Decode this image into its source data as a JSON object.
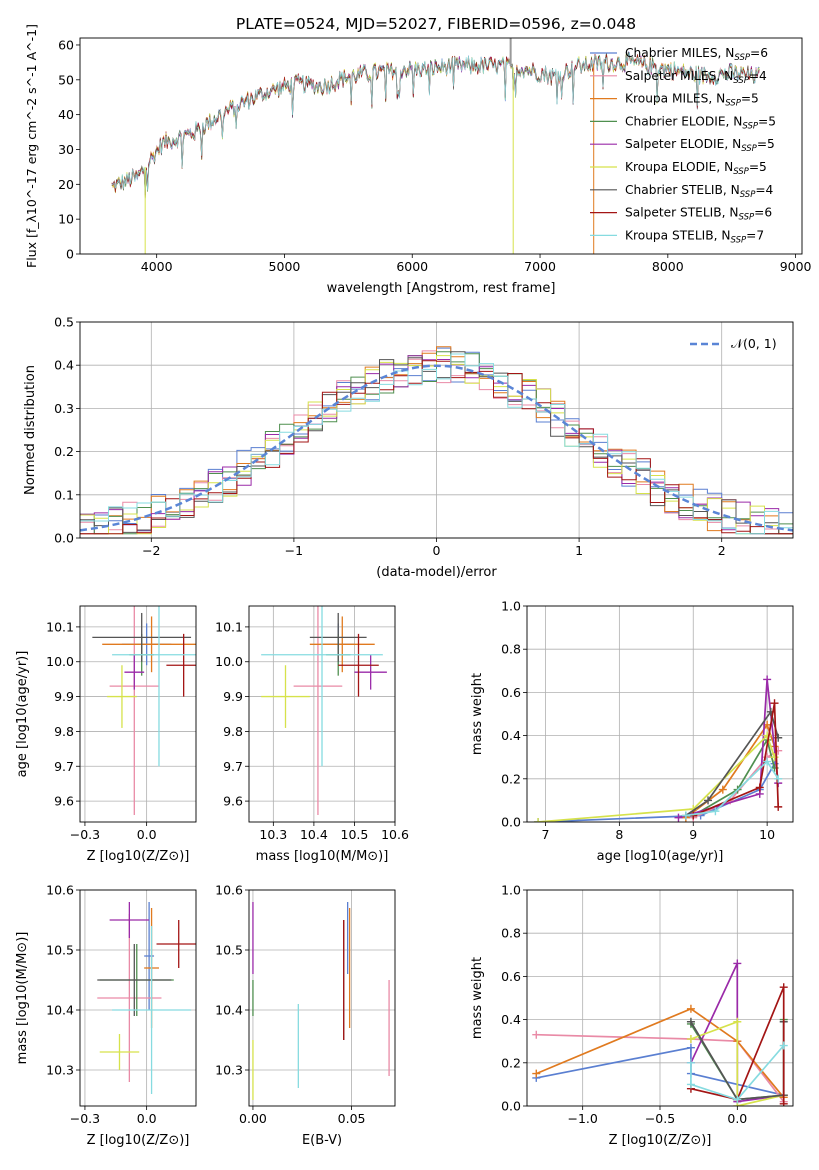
{
  "title": "PLATE=0524, MJD=52027, FIBERID=0596, z=0.048",
  "colors": {
    "Chabrier MILES": "#5a7fd1",
    "Salpeter MILES": "#e98aa6",
    "Kroupa MILES": "#e07a1f",
    "Chabrier ELODIE": "#4f8f4f",
    "Salpeter ELODIE": "#9a2aa8",
    "Kroupa ELODIE": "#d6e24b",
    "Chabrier STELIB": "#555555",
    "Salpeter STELIB": "#a31515",
    "Kroupa STELIB": "#86dbe0"
  },
  "chart_data": [
    {
      "type": "line",
      "panel": "spectrum",
      "xlabel": "wavelength [Angstrom, rest frame]",
      "ylabel": "Flux [f_λ10^-17 erg cm^-2 s^-1 A^-1]",
      "xlim": [
        3400,
        9050
      ],
      "ylim": [
        0,
        62
      ],
      "xticks": [
        4000,
        5000,
        6000,
        7000,
        8000,
        9000
      ],
      "yticks": [
        0,
        10,
        20,
        30,
        40,
        50,
        60
      ],
      "legend_position": "top-right",
      "legend": [
        {
          "label": "Chabrier MILES, N",
          "sub": "SSP",
          "tail": "=6"
        },
        {
          "label": "Salpeter MILES, N",
          "sub": "SSP",
          "tail": "=4"
        },
        {
          "label": "Kroupa MILES, N",
          "sub": "SSP",
          "tail": "=5"
        },
        {
          "label": "Chabrier ELODIE, N",
          "sub": "SSP",
          "tail": "=5"
        },
        {
          "label": "Salpeter ELODIE, N",
          "sub": "SSP",
          "tail": "=5"
        },
        {
          "label": "Kroupa ELODIE, N",
          "sub": "SSP",
          "tail": "=5"
        },
        {
          "label": "Chabrier STELIB, N",
          "sub": "SSP",
          "tail": "=4"
        },
        {
          "label": "Salpeter STELIB, N",
          "sub": "SSP",
          "tail": "=6"
        },
        {
          "label": "Kroupa STELIB, N",
          "sub": "SSP",
          "tail": "=7"
        }
      ],
      "continuum": [
        [
          3650,
          19
        ],
        [
          3750,
          21
        ],
        [
          3850,
          22
        ],
        [
          3950,
          27
        ],
        [
          4050,
          32
        ],
        [
          4150,
          33
        ],
        [
          4300,
          35
        ],
        [
          4500,
          40
        ],
        [
          4700,
          44
        ],
        [
          4900,
          47
        ],
        [
          5100,
          49
        ],
        [
          5300,
          48
        ],
        [
          5500,
          51
        ],
        [
          5700,
          52
        ],
        [
          5900,
          53
        ],
        [
          6100,
          53
        ],
        [
          6300,
          54
        ],
        [
          6500,
          54
        ],
        [
          6700,
          54
        ],
        [
          6900,
          53
        ],
        [
          7100,
          51
        ],
        [
          7300,
          54
        ],
        [
          7500,
          55
        ],
        [
          7700,
          55
        ],
        [
          8000,
          53
        ],
        [
          8300,
          51
        ],
        [
          8500,
          52
        ],
        [
          8700,
          51
        ]
      ]
    },
    {
      "type": "step",
      "panel": "residuals",
      "xlabel": "(data-model)/error",
      "ylabel": "Normed distribution",
      "xlim": [
        -2.5,
        2.5
      ],
      "ylim": [
        0,
        0.5
      ],
      "xticks": [
        -2,
        -1,
        0,
        1,
        2
      ],
      "yticks": [
        0.0,
        0.1,
        0.2,
        0.3,
        0.4,
        0.5
      ],
      "legend": "𝒩(0, 1)",
      "legend_position": "top-right",
      "gaussian": {
        "mean": 0,
        "sigma": 1
      }
    },
    {
      "type": "scatter",
      "panel": "age-vs-Z",
      "xlabel": "Z [log10(Z/Z⊙)]",
      "ylabel": "age  [log10(age/yr)]",
      "xlim": [
        -0.27,
        0.2
      ],
      "ylim": [
        9.54,
        10.16
      ],
      "xticks": [
        -0.25,
        0.0,
        0.25
      ],
      "yticks": [
        9.6,
        9.7,
        9.8,
        9.9,
        10.0,
        10.1
      ],
      "points": [
        {
          "name": "Chabrier MILES",
          "x": 0.0,
          "xerr": 0.1,
          "y": 10.05,
          "yerr": 0.06
        },
        {
          "name": "Salpeter MILES",
          "x": -0.05,
          "xerr": 0.1,
          "y": 9.93,
          "yerr": 0.37
        },
        {
          "name": "Kroupa MILES",
          "x": 0.02,
          "xerr": 0.2,
          "y": 10.05,
          "yerr": 0.08
        },
        {
          "name": "Chabrier ELODIE",
          "x": -0.02,
          "xerr": 0.05,
          "y": 10.02,
          "yerr": 0.06
        },
        {
          "name": "Salpeter ELODIE",
          "x": -0.05,
          "xerr": 0.04,
          "y": 9.97,
          "yerr": 0.05
        },
        {
          "name": "Kroupa ELODIE",
          "x": -0.1,
          "xerr": 0.06,
          "y": 9.9,
          "yerr": 0.09
        },
        {
          "name": "Chabrier STELIB",
          "x": -0.02,
          "xerr": 0.2,
          "y": 10.07,
          "yerr": 0.07
        },
        {
          "name": "Salpeter STELIB",
          "x": 0.15,
          "xerr": 0.07,
          "y": 9.99,
          "yerr": 0.09
        },
        {
          "name": "Kroupa STELIB",
          "x": 0.05,
          "xerr": 0.19,
          "y": 10.02,
          "yerr": 0.32
        }
      ]
    },
    {
      "type": "scatter",
      "panel": "age-vs-mass",
      "xlabel": "mass [log10(M/M⊙)]",
      "ylabel": "",
      "xlim": [
        10.24,
        10.6
      ],
      "ylim": [
        9.54,
        10.16
      ],
      "xticks": [
        10.3,
        10.4,
        10.5,
        10.6
      ],
      "yticks": [
        9.6,
        9.7,
        9.8,
        9.9,
        10.0,
        10.1
      ],
      "points": [
        {
          "name": "Chabrier MILES",
          "x": 10.46,
          "xerr": 0.04,
          "y": 10.05,
          "yerr": 0.06
        },
        {
          "name": "Salpeter MILES",
          "x": 10.41,
          "xerr": 0.06,
          "y": 9.93,
          "yerr": 0.37
        },
        {
          "name": "Kroupa MILES",
          "x": 10.47,
          "xerr": 0.08,
          "y": 10.05,
          "yerr": 0.08
        },
        {
          "name": "Chabrier ELODIE",
          "x": 10.46,
          "xerr": 0.03,
          "y": 10.02,
          "yerr": 0.06
        },
        {
          "name": "Salpeter ELODIE",
          "x": 10.54,
          "xerr": 0.04,
          "y": 9.97,
          "yerr": 0.05
        },
        {
          "name": "Kroupa ELODIE",
          "x": 10.33,
          "xerr": 0.06,
          "y": 9.9,
          "yerr": 0.09
        },
        {
          "name": "Chabrier STELIB",
          "x": 10.46,
          "xerr": 0.07,
          "y": 10.07,
          "yerr": 0.07
        },
        {
          "name": "Salpeter STELIB",
          "x": 10.51,
          "xerr": 0.05,
          "y": 9.99,
          "yerr": 0.09
        },
        {
          "name": "Kroupa STELIB",
          "x": 10.42,
          "xerr": 0.15,
          "y": 10.02,
          "yerr": 0.32
        }
      ]
    },
    {
      "type": "line",
      "panel": "massweight-vs-age",
      "xlabel": "age  [log10(age/yr)]",
      "ylabel": "mass weight",
      "xlim": [
        6.75,
        10.35
      ],
      "ylim": [
        0,
        1.0
      ],
      "xticks": [
        7,
        8,
        9,
        10
      ],
      "yticks": [
        0.0,
        0.2,
        0.4,
        0.6,
        0.8,
        1.0
      ],
      "series": [
        {
          "name": "Chabrier MILES",
          "x": [
            6.9,
            9.1,
            9.9,
            10.1
          ],
          "y": [
            0.0,
            0.03,
            0.15,
            0.27
          ]
        },
        {
          "name": "Salpeter MILES",
          "x": [
            9.0,
            9.5,
            10.0,
            10.15
          ],
          "y": [
            0.02,
            0.1,
            0.3,
            0.33
          ]
        },
        {
          "name": "Kroupa MILES",
          "x": [
            8.9,
            9.4,
            10.0,
            10.1
          ],
          "y": [
            0.02,
            0.15,
            0.45,
            0.35
          ]
        },
        {
          "name": "Chabrier ELODIE",
          "x": [
            9.0,
            9.6,
            10.0,
            10.1
          ],
          "y": [
            0.03,
            0.15,
            0.38,
            0.25
          ]
        },
        {
          "name": "Salpeter ELODIE",
          "x": [
            8.8,
            9.9,
            10.0,
            10.15
          ],
          "y": [
            0.02,
            0.13,
            0.66,
            0.18
          ]
        },
        {
          "name": "Kroupa ELODIE",
          "x": [
            6.9,
            9.0,
            10.0,
            10.1
          ],
          "y": [
            0.0,
            0.06,
            0.4,
            0.3
          ]
        },
        {
          "name": "Chabrier STELIB",
          "x": [
            8.9,
            9.2,
            10.05,
            10.15
          ],
          "y": [
            0.03,
            0.1,
            0.51,
            0.39
          ]
        },
        {
          "name": "Salpeter STELIB",
          "x": [
            9.0,
            9.9,
            10.1,
            10.15
          ],
          "y": [
            0.03,
            0.16,
            0.55,
            0.07
          ]
        },
        {
          "name": "Kroupa STELIB",
          "x": [
            8.9,
            9.3,
            10.0,
            10.15
          ],
          "y": [
            0.03,
            0.05,
            0.28,
            0.2
          ]
        }
      ]
    },
    {
      "type": "scatter",
      "panel": "mass-vs-Z",
      "xlabel": "Z [log10(Z/Z⊙)]",
      "ylabel": "mass [log10(M/M⊙)]",
      "xlim": [
        -0.27,
        0.2
      ],
      "ylim": [
        10.24,
        10.6
      ],
      "xticks": [
        -0.25,
        0.0,
        0.25
      ],
      "yticks": [
        10.3,
        10.4,
        10.5,
        10.6
      ],
      "points": [
        {
          "name": "Chabrier MILES",
          "x": 0.01,
          "xerr": 0.02,
          "y": 10.49,
          "yerr": 0.09
        },
        {
          "name": "Salpeter MILES",
          "x": -0.07,
          "xerr": 0.13,
          "y": 10.42,
          "yerr": 0.14
        },
        {
          "name": "Kroupa MILES",
          "x": 0.02,
          "xerr": 0.03,
          "y": 10.47,
          "yerr": 0.1
        },
        {
          "name": "Chabrier ELODIE",
          "x": -0.04,
          "xerr": 0.15,
          "y": 10.45,
          "yerr": 0.06
        },
        {
          "name": "Salpeter ELODIE",
          "x": -0.07,
          "xerr": 0.08,
          "y": 10.55,
          "yerr": 0.03
        },
        {
          "name": "Kroupa ELODIE",
          "x": -0.11,
          "xerr": 0.08,
          "y": 10.33,
          "yerr": 0.03
        },
        {
          "name": "Chabrier STELIB",
          "x": -0.05,
          "xerr": 0.15,
          "y": 10.45,
          "yerr": 0.06
        },
        {
          "name": "Salpeter STELIB",
          "x": 0.13,
          "xerr": 0.09,
          "y": 10.51,
          "yerr": 0.04
        },
        {
          "name": "Kroupa STELIB",
          "x": 0.02,
          "xerr": 0.16,
          "y": 10.4,
          "yerr": 0.14
        }
      ]
    },
    {
      "type": "errorbar",
      "panel": "mass-vs-EBV",
      "xlabel": "E(B-V)",
      "ylabel": "",
      "xlim": [
        -0.002,
        0.072
      ],
      "ylim": [
        10.24,
        10.6
      ],
      "xticks": [
        0.0,
        0.05
      ],
      "yticks": [
        10.3,
        10.4,
        10.5,
        10.6
      ],
      "points": [
        {
          "name": "Chabrier MILES",
          "x": 0.048,
          "y": 10.52,
          "yerr": 0.06
        },
        {
          "name": "Salpeter MILES",
          "x": 0.069,
          "y": 10.37,
          "yerr": 0.08
        },
        {
          "name": "Kroupa MILES",
          "x": 0.049,
          "y": 10.47,
          "yerr": 0.1
        },
        {
          "name": "Chabrier ELODIE",
          "x": 0.0,
          "y": 10.42,
          "yerr": 0.03
        },
        {
          "name": "Salpeter ELODIE",
          "x": 0.0,
          "y": 10.52,
          "yerr": 0.06
        },
        {
          "name": "Kroupa ELODIE",
          "x": 0.0,
          "y": 10.3,
          "yerr": 0.05
        },
        {
          "name": "Chabrier STELIB",
          "x": 0.046,
          "y": 10.45,
          "yerr": 0.1
        },
        {
          "name": "Salpeter STELIB",
          "x": 0.046,
          "y": 10.45,
          "yerr": 0.1
        },
        {
          "name": "Kroupa STELIB",
          "x": 0.023,
          "y": 10.34,
          "yerr": 0.07
        }
      ]
    },
    {
      "type": "line",
      "panel": "massweight-vs-Z",
      "xlabel": "Z [log10(Z/Z⊙)]",
      "ylabel": "mass weight",
      "xlim": [
        -1.36,
        0.36
      ],
      "ylim": [
        0,
        1.0
      ],
      "xticks": [
        -1.0,
        -0.5,
        0.0
      ],
      "yticks": [
        0.0,
        0.2,
        0.4,
        0.6,
        0.8,
        1.0
      ],
      "series": [
        {
          "name": "Chabrier MILES",
          "x": [
            -1.3,
            -0.3,
            -0.3,
            0.3
          ],
          "y": [
            0.13,
            0.27,
            0.15,
            0.05
          ]
        },
        {
          "name": "Salpeter MILES",
          "x": [
            -1.3,
            -0.3,
            0.0,
            0.3
          ],
          "y": [
            0.33,
            0.31,
            0.3,
            0.02
          ]
        },
        {
          "name": "Kroupa MILES",
          "x": [
            -1.3,
            -0.3,
            0.0,
            0.3
          ],
          "y": [
            0.15,
            0.45,
            0.3,
            0.04
          ]
        },
        {
          "name": "Chabrier ELODIE",
          "x": [
            -0.3,
            0.0,
            0.3,
            0.3
          ],
          "y": [
            0.38,
            0.03,
            0.05,
            0.4
          ]
        },
        {
          "name": "Salpeter ELODIE",
          "x": [
            -0.3,
            0.0,
            0.0,
            0.3
          ],
          "y": [
            0.2,
            0.66,
            0.02,
            0.05
          ]
        },
        {
          "name": "Kroupa ELODIE",
          "x": [
            -0.3,
            0.0,
            0.0,
            0.3
          ],
          "y": [
            0.31,
            0.39,
            0.0,
            0.05
          ]
        },
        {
          "name": "Chabrier STELIB",
          "x": [
            -0.3,
            0.0,
            0.3,
            0.3
          ],
          "y": [
            0.39,
            0.03,
            0.05,
            0.39
          ]
        },
        {
          "name": "Salpeter STELIB",
          "x": [
            -0.3,
            0.0,
            0.3,
            0.3
          ],
          "y": [
            0.08,
            0.03,
            0.55,
            0.01
          ]
        },
        {
          "name": "Kroupa STELIB",
          "x": [
            -0.3,
            -0.3,
            0.0,
            0.3
          ],
          "y": [
            0.2,
            0.1,
            0.03,
            0.28
          ]
        }
      ]
    }
  ]
}
